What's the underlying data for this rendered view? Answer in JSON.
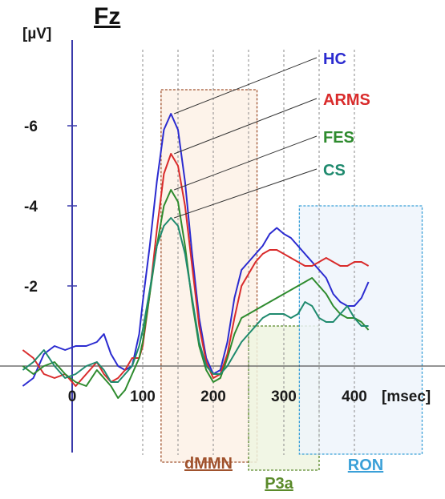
{
  "chart_data": {
    "type": "line",
    "title": "Fz",
    "ylabel": "[µV]",
    "xlabel": "[msec]",
    "xlim": [
      -70,
      420
    ],
    "ylim": [
      -7.5,
      1.8
    ],
    "y_inverted": true,
    "x_ticks": [
      0,
      100,
      200,
      300,
      400
    ],
    "x_tick_labels": [
      "0",
      "100",
      "200",
      "300",
      "400"
    ],
    "y_ticks": [
      -6,
      -4,
      -2
    ],
    "y_tick_labels": [
      "-6",
      "-4",
      "-2"
    ],
    "vertical_guides": [
      100,
      150,
      200,
      250,
      300,
      350,
      400
    ],
    "series": [
      {
        "name": "HC",
        "color": "#2b2bd0",
        "x": [
          -70,
          -55,
          -40,
          -25,
          -10,
          5,
          20,
          35,
          45,
          55,
          65,
          75,
          85,
          95,
          100,
          110,
          120,
          130,
          140,
          150,
          160,
          170,
          180,
          190,
          200,
          210,
          220,
          230,
          240,
          250,
          260,
          270,
          280,
          290,
          300,
          310,
          320,
          330,
          340,
          350,
          360,
          370,
          380,
          390,
          400,
          410,
          420
        ],
        "y": [
          0.5,
          0.3,
          -0.3,
          -0.5,
          -0.4,
          -0.5,
          -0.5,
          -0.6,
          -0.8,
          -0.3,
          0,
          0.1,
          0,
          -0.8,
          -1.6,
          -3.0,
          -4.6,
          -5.9,
          -6.3,
          -5.9,
          -4.6,
          -2.8,
          -1.2,
          -0.2,
          0.2,
          0.1,
          -0.6,
          -1.7,
          -2.4,
          -2.6,
          -2.8,
          -3.0,
          -3.3,
          -3.45,
          -3.3,
          -3.2,
          -3.0,
          -2.8,
          -2.6,
          -2.4,
          -2.2,
          -1.8,
          -1.6,
          -1.5,
          -1.5,
          -1.7,
          -2.1
        ]
      },
      {
        "name": "ARMS",
        "color": "#d92b2b",
        "x": [
          -70,
          -55,
          -40,
          -25,
          -10,
          5,
          20,
          35,
          45,
          55,
          65,
          75,
          85,
          95,
          100,
          110,
          120,
          130,
          140,
          150,
          160,
          170,
          180,
          190,
          200,
          210,
          220,
          230,
          240,
          250,
          260,
          270,
          280,
          290,
          300,
          310,
          320,
          330,
          340,
          350,
          360,
          370,
          380,
          390,
          400,
          410,
          420
        ],
        "y": [
          -0.4,
          -0.2,
          0.2,
          0.3,
          0.2,
          0.5,
          0.2,
          -0.1,
          0.2,
          0.4,
          0.3,
          0.1,
          -0.2,
          -0.2,
          -0.5,
          -1.8,
          -3.4,
          -4.8,
          -5.3,
          -5.0,
          -4.0,
          -2.5,
          -1.0,
          -0.1,
          0.3,
          0.2,
          -0.3,
          -1.2,
          -2.0,
          -2.3,
          -2.6,
          -2.8,
          -2.9,
          -2.9,
          -2.8,
          -2.7,
          -2.6,
          -2.5,
          -2.5,
          -2.6,
          -2.7,
          -2.6,
          -2.5,
          -2.5,
          -2.6,
          -2.6,
          -2.5
        ]
      },
      {
        "name": "FES",
        "color": "#2e8b2e",
        "x": [
          -70,
          -55,
          -40,
          -25,
          -10,
          5,
          20,
          35,
          45,
          55,
          65,
          75,
          85,
          95,
          100,
          110,
          120,
          130,
          140,
          150,
          160,
          170,
          180,
          190,
          200,
          210,
          220,
          230,
          240,
          250,
          260,
          270,
          280,
          290,
          300,
          310,
          320,
          330,
          340,
          350,
          360,
          370,
          380,
          390,
          400,
          410,
          420
        ],
        "y": [
          0,
          0.2,
          0,
          -0.1,
          0.2,
          0.4,
          0.5,
          0.1,
          0.3,
          0.5,
          0.8,
          0.6,
          0.2,
          -0.2,
          -0.6,
          -1.8,
          -3.0,
          -4.0,
          -4.4,
          -4.1,
          -3.0,
          -1.6,
          -0.5,
          0.1,
          0.4,
          0.3,
          -0.2,
          -0.8,
          -1.2,
          -1.3,
          -1.4,
          -1.5,
          -1.6,
          -1.7,
          -1.8,
          -1.9,
          -2.0,
          -2.1,
          -2.2,
          -2.0,
          -1.8,
          -1.5,
          -1.3,
          -1.2,
          -1.2,
          -1.1,
          -0.9
        ]
      },
      {
        "name": "CS",
        "color": "#1f8a6e",
        "x": [
          -70,
          -55,
          -40,
          -25,
          -10,
          5,
          20,
          35,
          45,
          55,
          65,
          75,
          85,
          95,
          100,
          110,
          120,
          130,
          140,
          150,
          160,
          170,
          180,
          190,
          200,
          210,
          220,
          230,
          240,
          250,
          260,
          270,
          280,
          290,
          300,
          310,
          320,
          330,
          340,
          350,
          360,
          370,
          380,
          390,
          400,
          410,
          420
        ],
        "y": [
          0.1,
          -0.1,
          -0.4,
          0,
          0.3,
          0.2,
          0,
          -0.1,
          0.1,
          0.4,
          0.4,
          0.2,
          0,
          -0.5,
          -0.9,
          -1.9,
          -3.0,
          -3.5,
          -3.7,
          -3.5,
          -2.8,
          -1.7,
          -0.6,
          0,
          0.2,
          0.2,
          0,
          -0.3,
          -0.6,
          -0.8,
          -1.0,
          -1.2,
          -1.3,
          -1.3,
          -1.3,
          -1.2,
          -1.3,
          -1.6,
          -1.5,
          -1.2,
          -1.1,
          -1.1,
          -1.3,
          -1.5,
          -1.2,
          -1.0,
          -1.0
        ]
      }
    ],
    "regions": [
      {
        "name": "dMMN",
        "color": "#a0522d",
        "fill": "#fdf1e6",
        "x_start": 126,
        "x_end": 262,
        "y_top": -6.9,
        "y_bottom": 2.4
      },
      {
        "name": "P3a",
        "color": "#5a8a2a",
        "fill": "#eef5e0",
        "x_start": 250,
        "x_end": 350,
        "y_top": -1.0,
        "y_bottom": 2.6
      },
      {
        "name": "RON",
        "color": "#3aa0d8",
        "fill": "#eef5fc",
        "x_start": 322,
        "x_end": 496,
        "y_top": -4.0,
        "y_bottom": 2.2
      }
    ]
  }
}
